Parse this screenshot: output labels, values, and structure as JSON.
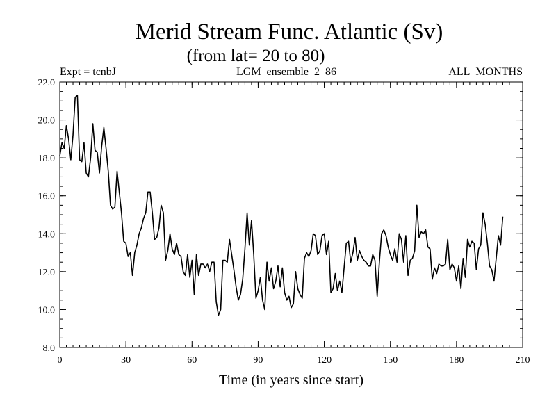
{
  "chart_data": {
    "type": "line",
    "title": "Merid Stream Func. Atlantic (Sv)",
    "subtitle": "(from lat= 20 to 80)",
    "header_left": "Expt = tcnbJ",
    "header_center": "LGM_ensemble_2_86",
    "header_right": "ALL_MONTHS",
    "xlabel": "Time (in years since start)",
    "ylabel": "",
    "xlim": [
      0,
      210
    ],
    "ylim": [
      8.0,
      22.0
    ],
    "x_ticks": [
      0,
      30,
      60,
      90,
      120,
      150,
      180,
      210
    ],
    "x_tick_labels": [
      "0",
      "30",
      "60",
      "90",
      "120",
      "150",
      "180",
      "210"
    ],
    "y_ticks": [
      8,
      10,
      12,
      14,
      16,
      18,
      20,
      22
    ],
    "y_tick_labels": [
      "8.0",
      "10.0",
      "12.0",
      "14.0",
      "16.0",
      "18.0",
      "20.0",
      "22.0"
    ],
    "x_minor_step": 3,
    "y_minor_step": 0.5,
    "grid": false,
    "series": [
      {
        "name": "Merid Stream Func. Atlantic",
        "x_start": 0,
        "x_step": 1,
        "values": [
          18.1,
          18.8,
          18.5,
          19.7,
          19.0,
          17.9,
          19.2,
          21.2,
          21.3,
          17.9,
          17.8,
          18.8,
          17.2,
          17.0,
          18.0,
          19.8,
          18.4,
          18.3,
          17.2,
          18.6,
          19.6,
          18.5,
          17.3,
          15.5,
          15.3,
          15.4,
          17.3,
          16.2,
          15.1,
          13.6,
          13.5,
          12.8,
          13.0,
          11.8,
          13.0,
          13.4,
          14.0,
          14.3,
          14.8,
          15.1,
          16.2,
          16.2,
          15.1,
          13.7,
          13.8,
          14.3,
          15.5,
          15.1,
          12.6,
          13.1,
          14.0,
          13.2,
          12.9,
          13.5,
          12.9,
          12.8,
          12.0,
          11.8,
          12.9,
          11.7,
          12.6,
          10.8,
          12.9,
          11.8,
          12.4,
          12.4,
          12.2,
          12.4,
          12.0,
          12.5,
          12.5,
          10.4,
          9.7,
          10.0,
          12.6,
          12.6,
          12.5,
          13.7,
          12.9,
          12.1,
          11.2,
          10.5,
          10.8,
          11.6,
          13.2,
          15.1,
          13.4,
          14.7,
          12.9,
          10.6,
          11.0,
          11.7,
          10.5,
          10.0,
          12.5,
          11.5,
          12.2,
          11.1,
          11.5,
          12.3,
          11.2,
          12.2,
          10.9,
          10.5,
          10.7,
          10.1,
          10.3,
          12.0,
          11.1,
          10.8,
          10.6,
          12.7,
          13.0,
          12.8,
          13.1,
          14.0,
          13.9,
          12.9,
          13.1,
          13.9,
          14.0,
          12.9,
          13.6,
          10.9,
          11.1,
          11.9,
          11.0,
          11.5,
          10.9,
          12.2,
          13.5,
          13.6,
          12.5,
          13.0,
          13.8,
          12.6,
          13.1,
          12.8,
          12.6,
          12.5,
          12.3,
          12.3,
          12.9,
          12.6,
          10.7,
          12.5,
          14.0,
          14.2,
          13.9,
          13.3,
          12.9,
          12.6,
          13.2,
          12.5,
          14.0,
          13.7,
          12.5,
          13.9,
          11.8,
          12.6,
          12.7,
          13.1,
          15.5,
          13.8,
          14.1,
          14.0,
          14.2,
          13.3,
          13.2,
          11.6,
          12.2,
          11.9,
          12.4,
          12.3,
          12.3,
          12.4,
          13.7,
          12.1,
          12.4,
          12.2,
          11.5,
          12.3,
          11.1,
          12.7,
          11.7,
          13.7,
          13.3,
          13.6,
          13.5,
          12.1,
          13.2,
          13.4,
          15.1,
          14.5,
          13.5,
          12.3,
          12.1,
          11.5,
          12.7,
          13.9,
          13.4,
          14.9
        ]
      }
    ]
  }
}
